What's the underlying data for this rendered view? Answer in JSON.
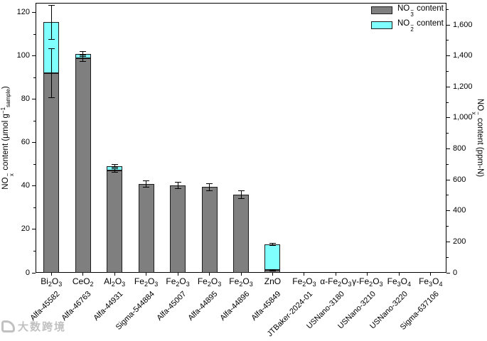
{
  "watermark": {
    "text": "大数跨境"
  },
  "chart_data": {
    "type": "bar",
    "stacked": true,
    "title": "",
    "grid": false,
    "legend_position": "top-right-inside",
    "categories": [
      {
        "formula": "Bi2O3",
        "catalog": "Alfa-45582"
      },
      {
        "formula": "CeO2",
        "catalog": "Alfa-46763"
      },
      {
        "formula": "Al2O3",
        "catalog": "Alfa-44931"
      },
      {
        "formula": "Fe2O3",
        "catalog": "Sigma-544884"
      },
      {
        "formula": "Fe2O3",
        "catalog": "Alfa-45007"
      },
      {
        "formula": "Fe2O3",
        "catalog": "Alfa-44895"
      },
      {
        "formula": "Fe2O3",
        "catalog": "Alfa-44896"
      },
      {
        "formula": "ZnO",
        "catalog": "Alfa-45849"
      },
      {
        "formula": "Fe2O3",
        "catalog": "JTBaker-2024-01"
      },
      {
        "formula": "α-Fe2O3",
        "catalog": "USNano-3180"
      },
      {
        "formula": "γ-Fe2O3",
        "catalog": "USNano-3210"
      },
      {
        "formula": "Fe3O4",
        "catalog": "USNano-3220"
      },
      {
        "formula": "Fe3O4",
        "catalog": "Sigma-637106"
      }
    ],
    "series": [
      {
        "name": "NO3− content",
        "color": "#7f7f7f",
        "values": [
          92,
          99,
          47.3,
          41,
          40.3,
          39.5,
          36,
          1.2,
          0,
          0,
          0,
          0,
          0
        ],
        "errors": [
          11.3,
          1.5,
          0.8,
          1.4,
          1.5,
          1.5,
          1.8,
          0.4,
          0,
          0,
          0,
          0,
          0
        ]
      },
      {
        "name": "NO2− content",
        "color": "#80ffff",
        "values": [
          23.5,
          2,
          2,
          0,
          0,
          0,
          0,
          11.8,
          0,
          0,
          0,
          0,
          0
        ],
        "errors": [
          8,
          1.2,
          0.6,
          0,
          0,
          0,
          0,
          0.5,
          0,
          0,
          0,
          0,
          0
        ]
      }
    ],
    "left_axis": {
      "label_text": "NOx− content (μmol g−1sample)",
      "label_parts": [
        {
          "t": "NO"
        },
        {
          "sup": "−",
          "sub": "x"
        },
        {
          "t": " content (μmol g"
        },
        {
          "sup": "−1"
        },
        {
          "sub": "sample"
        },
        {
          "t": ")"
        }
      ],
      "view_max": 124.5,
      "ylim": [
        0,
        120
      ],
      "major_ticks": [
        {
          "v": 0,
          "l": "0"
        },
        {
          "v": 20,
          "l": "20"
        },
        {
          "v": 40,
          "l": "40"
        },
        {
          "v": 60,
          "l": "60"
        },
        {
          "v": 80,
          "l": "80"
        },
        {
          "v": 100,
          "l": "100"
        },
        {
          "v": 120,
          "l": "120"
        }
      ],
      "minor_ticks": [
        10,
        30,
        50,
        70,
        90,
        110
      ]
    },
    "right_axis": {
      "label_text": "NOx− content (ppm-N)",
      "label_parts": [
        {
          "t": "NO"
        },
        {
          "sup": "−",
          "sub": "x"
        },
        {
          "t": " content (ppm-N)"
        }
      ],
      "view_max": 1743,
      "ylim": [
        0,
        1600
      ],
      "major_ticks": [
        {
          "v": 0,
          "l": "0"
        },
        {
          "v": 200,
          "l": "200"
        },
        {
          "v": 400,
          "l": "400"
        },
        {
          "v": 600,
          "l": "600"
        },
        {
          "v": 800,
          "l": "800"
        },
        {
          "v": 1000,
          "l": "1,000"
        },
        {
          "v": 1200,
          "l": "1,200"
        },
        {
          "v": 1400,
          "l": "1,400"
        },
        {
          "v": 1600,
          "l": "1,600"
        }
      ],
      "minor_ticks": [
        100,
        300,
        500,
        700,
        900,
        1100,
        1300,
        1500,
        1700
      ]
    },
    "legend": [
      {
        "color": "#7f7f7f",
        "label_text": "NO3− content",
        "label_parts": [
          {
            "t": "NO"
          },
          {
            "sup": "−",
            "sub": "3"
          },
          {
            "t": " content"
          }
        ]
      },
      {
        "color": "#80ffff",
        "label_text": "NO2− content",
        "label_parts": [
          {
            "t": "NO"
          },
          {
            "sup": "−",
            "sub": "2"
          },
          {
            "t": " content"
          }
        ]
      }
    ]
  }
}
